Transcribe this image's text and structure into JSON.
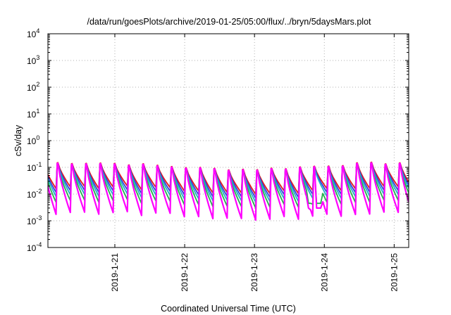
{
  "chart_data": {
    "type": "line",
    "title": "/data/run/goesPlots/archive/2019-01-25/05:00/flux/../bryn/5daysMars.plot",
    "xlabel": "Coordinated Universal Time (UTC)",
    "ylabel": "cSv/day",
    "yscale": "log",
    "ylim": [
      0.0001,
      10000
    ],
    "xlim": [
      "2019-01-20T01:00",
      "2019-01-25T05:00"
    ],
    "y_ticks": [
      {
        "base": "10",
        "exp": "4",
        "value": 10000
      },
      {
        "base": "10",
        "exp": "3",
        "value": 1000
      },
      {
        "base": "10",
        "exp": "2",
        "value": 100
      },
      {
        "base": "10",
        "exp": "1",
        "value": 10
      },
      {
        "base": "10",
        "exp": "0",
        "value": 1
      },
      {
        "base": "10",
        "exp": "-1",
        "value": 0.1
      },
      {
        "base": "10",
        "exp": "-2",
        "value": 0.01
      },
      {
        "base": "10",
        "exp": "-3",
        "value": 0.001
      },
      {
        "base": "10",
        "exp": "-4",
        "value": 0.0001
      }
    ],
    "x_ticks": [
      {
        "label": "2019-1-21",
        "value": "2019-01-21T00:00"
      },
      {
        "label": "2019-1-22",
        "value": "2019-01-22T00:00"
      },
      {
        "label": "2019-1-23",
        "value": "2019-01-23T00:00"
      },
      {
        "label": "2019-1-24",
        "value": "2019-01-24T00:00"
      },
      {
        "label": "2019-1-25",
        "value": "2019-01-25T00:00"
      }
    ],
    "grid": true,
    "legend": "none",
    "pattern": {
      "description": "Sawtooth pattern repeating about every 4.9 hours across all series",
      "period_hours": 4.9,
      "peak_range_csv_per_day": [
        0.08,
        0.17
      ],
      "series_peak_multipliers": [
        1.0,
        0.94,
        0.88,
        0.8,
        0.95
      ],
      "series_decay_factors": [
        0.13,
        0.1,
        0.075,
        0.05,
        0.015
      ],
      "dip": {
        "time": "2019-01-23T20:30",
        "value": 0.003
      }
    },
    "series": [
      {
        "color": "#e41a1c"
      },
      {
        "color": "#3a3adc"
      },
      {
        "color": "#1fb4c8"
      },
      {
        "color": "#22b14c"
      },
      {
        "color": "#ff00ff"
      }
    ]
  }
}
